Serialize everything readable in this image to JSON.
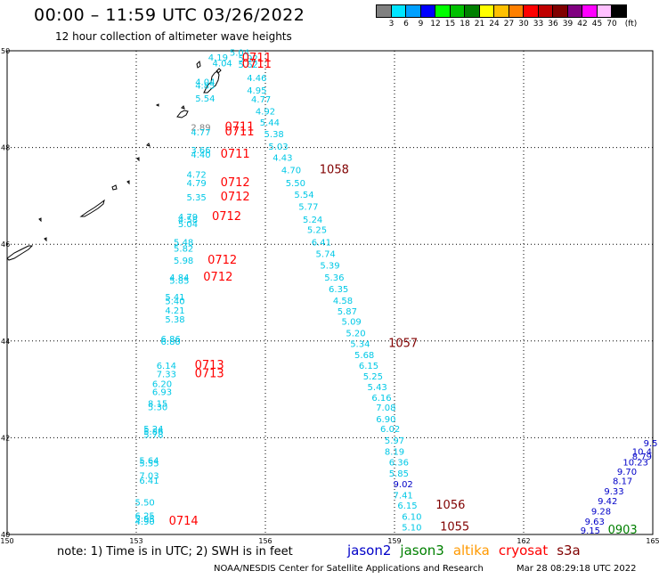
{
  "title": "00:00 – 11:59 UTC 03/26/2022",
  "subtitle": "12 hour collection of altimeter wave heights",
  "legend": {
    "unit": "(ft)",
    "colors": [
      "#808080",
      "#00e5ff",
      "#00a0ff",
      "#0000ff",
      "#00ff00",
      "#00c000",
      "#008000",
      "#ffff00",
      "#ffc000",
      "#ff8000",
      "#ff0000",
      "#c00000",
      "#800000",
      "#800080",
      "#ff00ff",
      "#ffc0ff",
      "#000000"
    ],
    "labels": [
      "3",
      "6",
      "9",
      "12",
      "15",
      "18",
      "21",
      "24",
      "27",
      "30",
      "33",
      "36",
      "39",
      "42",
      "45",
      "70"
    ]
  },
  "map": {
    "lat_ticks": [
      "50",
      "48",
      "46",
      "44",
      "42",
      "40"
    ],
    "lon_ticks": [
      "150",
      "153",
      "156",
      "159",
      "162",
      "165"
    ],
    "colors": {
      "cyan": "#00c8e6",
      "gray": "#808080",
      "blue": "#0000c8",
      "red": "#ff0000",
      "maroon": "#800000",
      "green": "#008000"
    },
    "swh_labels": [
      {
        "text": "5.04",
        "lat": 49.9,
        "lon": 155.4,
        "c": "cyan"
      },
      {
        "text": "4.19",
        "lat": 49.8,
        "lon": 154.9,
        "c": "cyan"
      },
      {
        "text": "5.92",
        "lat": 49.78,
        "lon": 155.6,
        "c": "cyan"
      },
      {
        "text": "4.04",
        "lat": 49.68,
        "lon": 155.0,
        "c": "cyan"
      },
      {
        "text": "5.62",
        "lat": 49.65,
        "lon": 155.6,
        "c": "cyan"
      },
      {
        "text": "4.46",
        "lat": 49.37,
        "lon": 155.8,
        "c": "cyan"
      },
      {
        "text": "4.04",
        "lat": 49.29,
        "lon": 154.6,
        "c": "cyan"
      },
      {
        "text": "4.85",
        "lat": 49.22,
        "lon": 154.6,
        "c": "cyan"
      },
      {
        "text": "4.95",
        "lat": 49.12,
        "lon": 155.8,
        "c": "cyan"
      },
      {
        "text": "5.54",
        "lat": 48.95,
        "lon": 154.6,
        "c": "cyan"
      },
      {
        "text": "4.77",
        "lat": 48.93,
        "lon": 155.9,
        "c": "cyan"
      },
      {
        "text": "4.92",
        "lat": 48.68,
        "lon": 156.0,
        "c": "cyan"
      },
      {
        "text": "5.44",
        "lat": 48.45,
        "lon": 156.1,
        "c": "cyan"
      },
      {
        "text": "2.89",
        "lat": 48.35,
        "lon": 154.5,
        "c": "gray"
      },
      {
        "text": "4.77",
        "lat": 48.25,
        "lon": 154.5,
        "c": "cyan"
      },
      {
        "text": "5.38",
        "lat": 48.21,
        "lon": 156.2,
        "c": "cyan"
      },
      {
        "text": "5.03",
        "lat": 47.96,
        "lon": 156.3,
        "c": "cyan"
      },
      {
        "text": "3.66",
        "lat": 47.88,
        "lon": 154.5,
        "c": "cyan"
      },
      {
        "text": "4.40",
        "lat": 47.79,
        "lon": 154.5,
        "c": "cyan"
      },
      {
        "text": "4.43",
        "lat": 47.73,
        "lon": 156.4,
        "c": "cyan"
      },
      {
        "text": "4.70",
        "lat": 47.47,
        "lon": 156.6,
        "c": "cyan"
      },
      {
        "text": "4.72",
        "lat": 47.38,
        "lon": 154.4,
        "c": "cyan"
      },
      {
        "text": "4.79",
        "lat": 47.2,
        "lon": 154.4,
        "c": "cyan"
      },
      {
        "text": "5.50",
        "lat": 47.2,
        "lon": 156.7,
        "c": "cyan"
      },
      {
        "text": "5.54",
        "lat": 46.96,
        "lon": 156.9,
        "c": "cyan"
      },
      {
        "text": "5.35",
        "lat": 46.91,
        "lon": 154.4,
        "c": "cyan"
      },
      {
        "text": "5.77",
        "lat": 46.71,
        "lon": 157.0,
        "c": "cyan"
      },
      {
        "text": "4.79",
        "lat": 46.5,
        "lon": 154.2,
        "c": "cyan"
      },
      {
        "text": "4.58",
        "lat": 46.45,
        "lon": 154.2,
        "c": "cyan"
      },
      {
        "text": "5.24",
        "lat": 46.45,
        "lon": 157.1,
        "c": "cyan"
      },
      {
        "text": "5.04",
        "lat": 46.35,
        "lon": 154.2,
        "c": "cyan"
      },
      {
        "text": "5.25",
        "lat": 46.23,
        "lon": 157.2,
        "c": "cyan"
      },
      {
        "text": "6.41",
        "lat": 45.98,
        "lon": 157.3,
        "c": "cyan"
      },
      {
        "text": "5.48",
        "lat": 45.98,
        "lon": 154.1,
        "c": "cyan"
      },
      {
        "text": "5.82",
        "lat": 45.85,
        "lon": 154.1,
        "c": "cyan"
      },
      {
        "text": "5.74",
        "lat": 45.74,
        "lon": 157.4,
        "c": "cyan"
      },
      {
        "text": "5.98",
        "lat": 45.6,
        "lon": 154.1,
        "c": "cyan"
      },
      {
        "text": "5.39",
        "lat": 45.5,
        "lon": 157.5,
        "c": "cyan"
      },
      {
        "text": "5.36",
        "lat": 45.25,
        "lon": 157.6,
        "c": "cyan"
      },
      {
        "text": "4.84",
        "lat": 45.25,
        "lon": 154.0,
        "c": "cyan"
      },
      {
        "text": "5.85",
        "lat": 45.18,
        "lon": 154.0,
        "c": "cyan"
      },
      {
        "text": "6.35",
        "lat": 45.01,
        "lon": 157.7,
        "c": "cyan"
      },
      {
        "text": "5.41",
        "lat": 44.84,
        "lon": 153.9,
        "c": "cyan"
      },
      {
        "text": "5.40",
        "lat": 44.76,
        "lon": 153.9,
        "c": "cyan"
      },
      {
        "text": "4.58",
        "lat": 44.77,
        "lon": 157.8,
        "c": "cyan"
      },
      {
        "text": "4.21",
        "lat": 44.57,
        "lon": 153.9,
        "c": "cyan"
      },
      {
        "text": "5.87",
        "lat": 44.55,
        "lon": 157.9,
        "c": "cyan"
      },
      {
        "text": "5.38",
        "lat": 44.38,
        "lon": 153.9,
        "c": "cyan"
      },
      {
        "text": "5.09",
        "lat": 44.34,
        "lon": 158.0,
        "c": "cyan"
      },
      {
        "text": "5.20",
        "lat": 44.1,
        "lon": 158.1,
        "c": "cyan"
      },
      {
        "text": "6.86",
        "lat": 43.98,
        "lon": 153.8,
        "c": "cyan"
      },
      {
        "text": "6.80",
        "lat": 43.92,
        "lon": 153.8,
        "c": "cyan"
      },
      {
        "text": "5.34",
        "lat": 43.88,
        "lon": 158.2,
        "c": "cyan"
      },
      {
        "text": "5.68",
        "lat": 43.65,
        "lon": 158.3,
        "c": "cyan"
      },
      {
        "text": "6.14",
        "lat": 43.43,
        "lon": 153.7,
        "c": "cyan"
      },
      {
        "text": "6.15",
        "lat": 43.43,
        "lon": 158.4,
        "c": "cyan"
      },
      {
        "text": "7.33",
        "lat": 43.25,
        "lon": 153.7,
        "c": "cyan"
      },
      {
        "text": "5.25",
        "lat": 43.2,
        "lon": 158.5,
        "c": "cyan"
      },
      {
        "text": "6.20",
        "lat": 43.05,
        "lon": 153.6,
        "c": "cyan"
      },
      {
        "text": "5.43",
        "lat": 42.98,
        "lon": 158.6,
        "c": "cyan"
      },
      {
        "text": "6.93",
        "lat": 42.88,
        "lon": 153.6,
        "c": "cyan"
      },
      {
        "text": "6.16",
        "lat": 42.76,
        "lon": 158.7,
        "c": "cyan"
      },
      {
        "text": "8.15",
        "lat": 42.64,
        "lon": 153.5,
        "c": "cyan"
      },
      {
        "text": "5.30",
        "lat": 42.57,
        "lon": 153.5,
        "c": "cyan"
      },
      {
        "text": "7.08",
        "lat": 42.56,
        "lon": 158.8,
        "c": "cyan"
      },
      {
        "text": "6.90",
        "lat": 42.32,
        "lon": 158.8,
        "c": "cyan"
      },
      {
        "text": "5.24",
        "lat": 42.12,
        "lon": 153.4,
        "c": "cyan"
      },
      {
        "text": "6.02",
        "lat": 42.12,
        "lon": 158.9,
        "c": "cyan"
      },
      {
        "text": "5.86",
        "lat": 42.06,
        "lon": 153.4,
        "c": "cyan"
      },
      {
        "text": "5.78",
        "lat": 42.0,
        "lon": 153.4,
        "c": "cyan"
      },
      {
        "text": "5.97",
        "lat": 41.88,
        "lon": 159.0,
        "c": "cyan"
      },
      {
        "text": "8.19",
        "lat": 41.65,
        "lon": 159.0,
        "c": "cyan"
      },
      {
        "text": "5.64",
        "lat": 41.46,
        "lon": 153.3,
        "c": "cyan"
      },
      {
        "text": "5.55",
        "lat": 41.41,
        "lon": 153.3,
        "c": "cyan"
      },
      {
        "text": "6.36",
        "lat": 41.43,
        "lon": 159.1,
        "c": "cyan"
      },
      {
        "text": "7.03",
        "lat": 41.15,
        "lon": 153.3,
        "c": "cyan"
      },
      {
        "text": "5.85",
        "lat": 41.2,
        "lon": 159.1,
        "c": "cyan"
      },
      {
        "text": "6.41",
        "lat": 41.05,
        "lon": 153.3,
        "c": "cyan"
      },
      {
        "text": "9.02",
        "lat": 40.98,
        "lon": 159.2,
        "c": "blue"
      },
      {
        "text": "7.41",
        "lat": 40.75,
        "lon": 159.2,
        "c": "cyan"
      },
      {
        "text": "5.50",
        "lat": 40.6,
        "lon": 153.2,
        "c": "cyan"
      },
      {
        "text": "6.15",
        "lat": 40.53,
        "lon": 159.3,
        "c": "cyan"
      },
      {
        "text": "6.25",
        "lat": 40.32,
        "lon": 153.2,
        "c": "cyan"
      },
      {
        "text": "5.95",
        "lat": 40.26,
        "lon": 153.2,
        "c": "cyan"
      },
      {
        "text": "4.90",
        "lat": 40.2,
        "lon": 153.2,
        "c": "cyan"
      },
      {
        "text": "6.10",
        "lat": 40.3,
        "lon": 159.4,
        "c": "cyan"
      },
      {
        "text": "5.10",
        "lat": 40.08,
        "lon": 159.4,
        "c": "cyan"
      },
      {
        "text": "9.5",
        "lat": 41.82,
        "lon": 164.95,
        "c": "blue"
      },
      {
        "text": "10.4",
        "lat": 41.65,
        "lon": 164.75,
        "c": "blue"
      },
      {
        "text": "8.79",
        "lat": 41.55,
        "lon": 164.75,
        "c": "blue"
      },
      {
        "text": "10.23",
        "lat": 41.43,
        "lon": 164.6,
        "c": "blue"
      },
      {
        "text": "9.70",
        "lat": 41.23,
        "lon": 164.4,
        "c": "blue"
      },
      {
        "text": "8.17",
        "lat": 41.04,
        "lon": 164.3,
        "c": "blue"
      },
      {
        "text": "9.33",
        "lat": 40.83,
        "lon": 164.1,
        "c": "blue"
      },
      {
        "text": "9.42",
        "lat": 40.63,
        "lon": 163.95,
        "c": "blue"
      },
      {
        "text": "9.28",
        "lat": 40.41,
        "lon": 163.8,
        "c": "blue"
      },
      {
        "text": "9.63",
        "lat": 40.2,
        "lon": 163.65,
        "c": "blue"
      },
      {
        "text": "9.15",
        "lat": 40.02,
        "lon": 163.55,
        "c": "blue"
      }
    ],
    "time_labels": [
      {
        "text": "0711",
        "lat": 49.78,
        "lon": 155.8,
        "c": "red"
      },
      {
        "text": "0711",
        "lat": 49.65,
        "lon": 155.8,
        "c": "red"
      },
      {
        "text": "0711",
        "lat": 48.35,
        "lon": 155.4,
        "c": "red"
      },
      {
        "text": "0711",
        "lat": 48.25,
        "lon": 155.4,
        "c": "red"
      },
      {
        "text": "0711",
        "lat": 47.79,
        "lon": 155.3,
        "c": "red"
      },
      {
        "text": "1058",
        "lat": 47.47,
        "lon": 157.6,
        "c": "maroon"
      },
      {
        "text": "0712",
        "lat": 47.2,
        "lon": 155.3,
        "c": "red"
      },
      {
        "text": "0712",
        "lat": 46.91,
        "lon": 155.3,
        "c": "red"
      },
      {
        "text": "0712",
        "lat": 46.5,
        "lon": 155.1,
        "c": "red"
      },
      {
        "text": "0712",
        "lat": 45.6,
        "lon": 155.0,
        "c": "red"
      },
      {
        "text": "0712",
        "lat": 45.25,
        "lon": 154.9,
        "c": "red"
      },
      {
        "text": "1057",
        "lat": 43.88,
        "lon": 159.2,
        "c": "maroon"
      },
      {
        "text": "0713",
        "lat": 43.43,
        "lon": 154.7,
        "c": "red"
      },
      {
        "text": "0713",
        "lat": 43.25,
        "lon": 154.7,
        "c": "red"
      },
      {
        "text": "1056",
        "lat": 40.53,
        "lon": 160.3,
        "c": "maroon"
      },
      {
        "text": "1055",
        "lat": 40.08,
        "lon": 160.4,
        "c": "maroon"
      },
      {
        "text": "0714",
        "lat": 40.2,
        "lon": 154.1,
        "c": "red"
      },
      {
        "text": "0903",
        "lat": 40.02,
        "lon": 164.3,
        "c": "green"
      }
    ]
  },
  "note": "note: 1) Time is in UTC; 2) SWH is in feet",
  "satellites": [
    {
      "name": "jason2",
      "color": "#0000c8"
    },
    {
      "name": "jason3",
      "color": "#008000"
    },
    {
      "name": "altika",
      "color": "#ff9900"
    },
    {
      "name": "cryosat",
      "color": "#ff0000"
    },
    {
      "name": "s3a",
      "color": "#800000"
    }
  ],
  "credit": "NOAA/NESDIS Center for Satellite Applications and Research",
  "timestamp": "Mar 28 08:29:18 UTC 2022"
}
